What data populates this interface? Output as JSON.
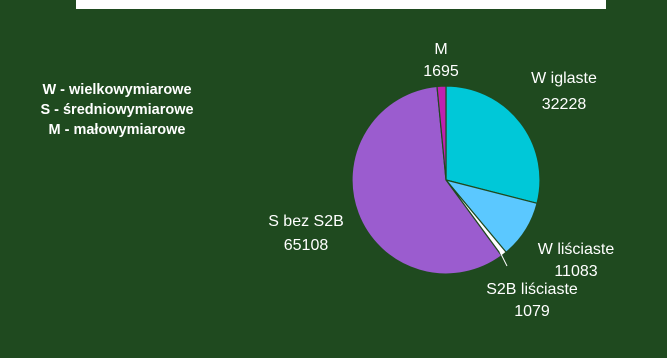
{
  "legend": {
    "lines": [
      "W - wielkowymiarowe",
      "S - średniowymiarowe",
      "M - małowymiarowe"
    ]
  },
  "chart_data": {
    "type": "pie",
    "slices": [
      {
        "label": "W iglaste",
        "value": 32228,
        "color": "#00c8d8"
      },
      {
        "label": "W liściaste",
        "value": 11083,
        "color": "#5bc8ff"
      },
      {
        "label": "S2B liściaste",
        "value": 1079,
        "color": "#ffffff"
      },
      {
        "label": "S bez S2B",
        "value": 65108,
        "color": "#9b5ccf"
      },
      {
        "label": "M",
        "value": 1695,
        "color": "#c020b0"
      }
    ]
  },
  "colors": {
    "background": "#1f4a1f",
    "text": "#ffffff"
  }
}
